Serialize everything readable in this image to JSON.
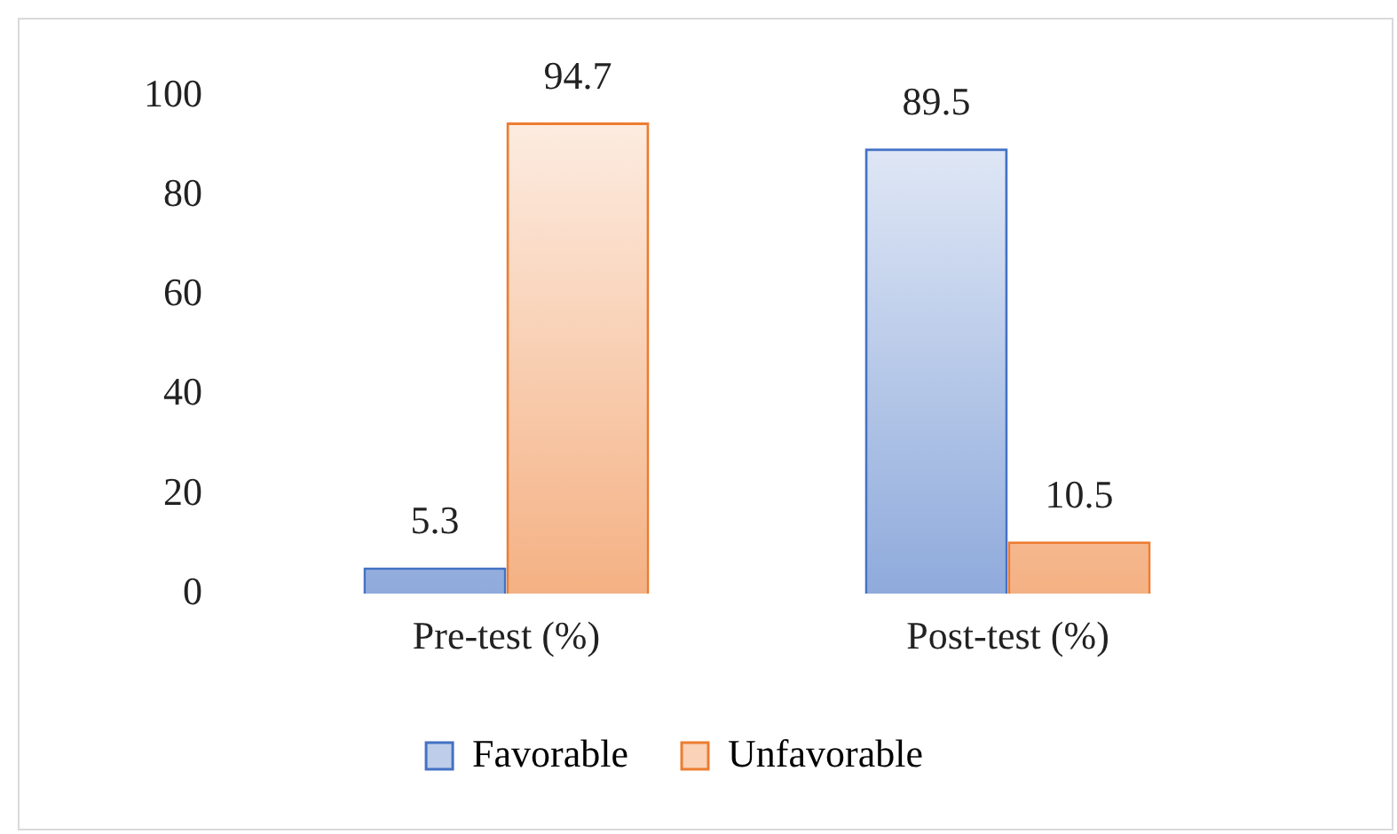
{
  "chart_data": {
    "type": "bar",
    "categories": [
      "Pre-test (%)",
      "Post-test (%)"
    ],
    "series": [
      {
        "name": "Favorable",
        "color": "#4472c4",
        "values": [
          5.3,
          89.5
        ]
      },
      {
        "name": "Unfavorable",
        "color": "#ed7d31",
        "values": [
          94.7,
          10.5
        ]
      }
    ],
    "ylim": [
      0,
      100
    ],
    "yticks": [
      0,
      20,
      40,
      60,
      80,
      100
    ],
    "grid": false,
    "legend": "bottom",
    "data_labels": true
  }
}
